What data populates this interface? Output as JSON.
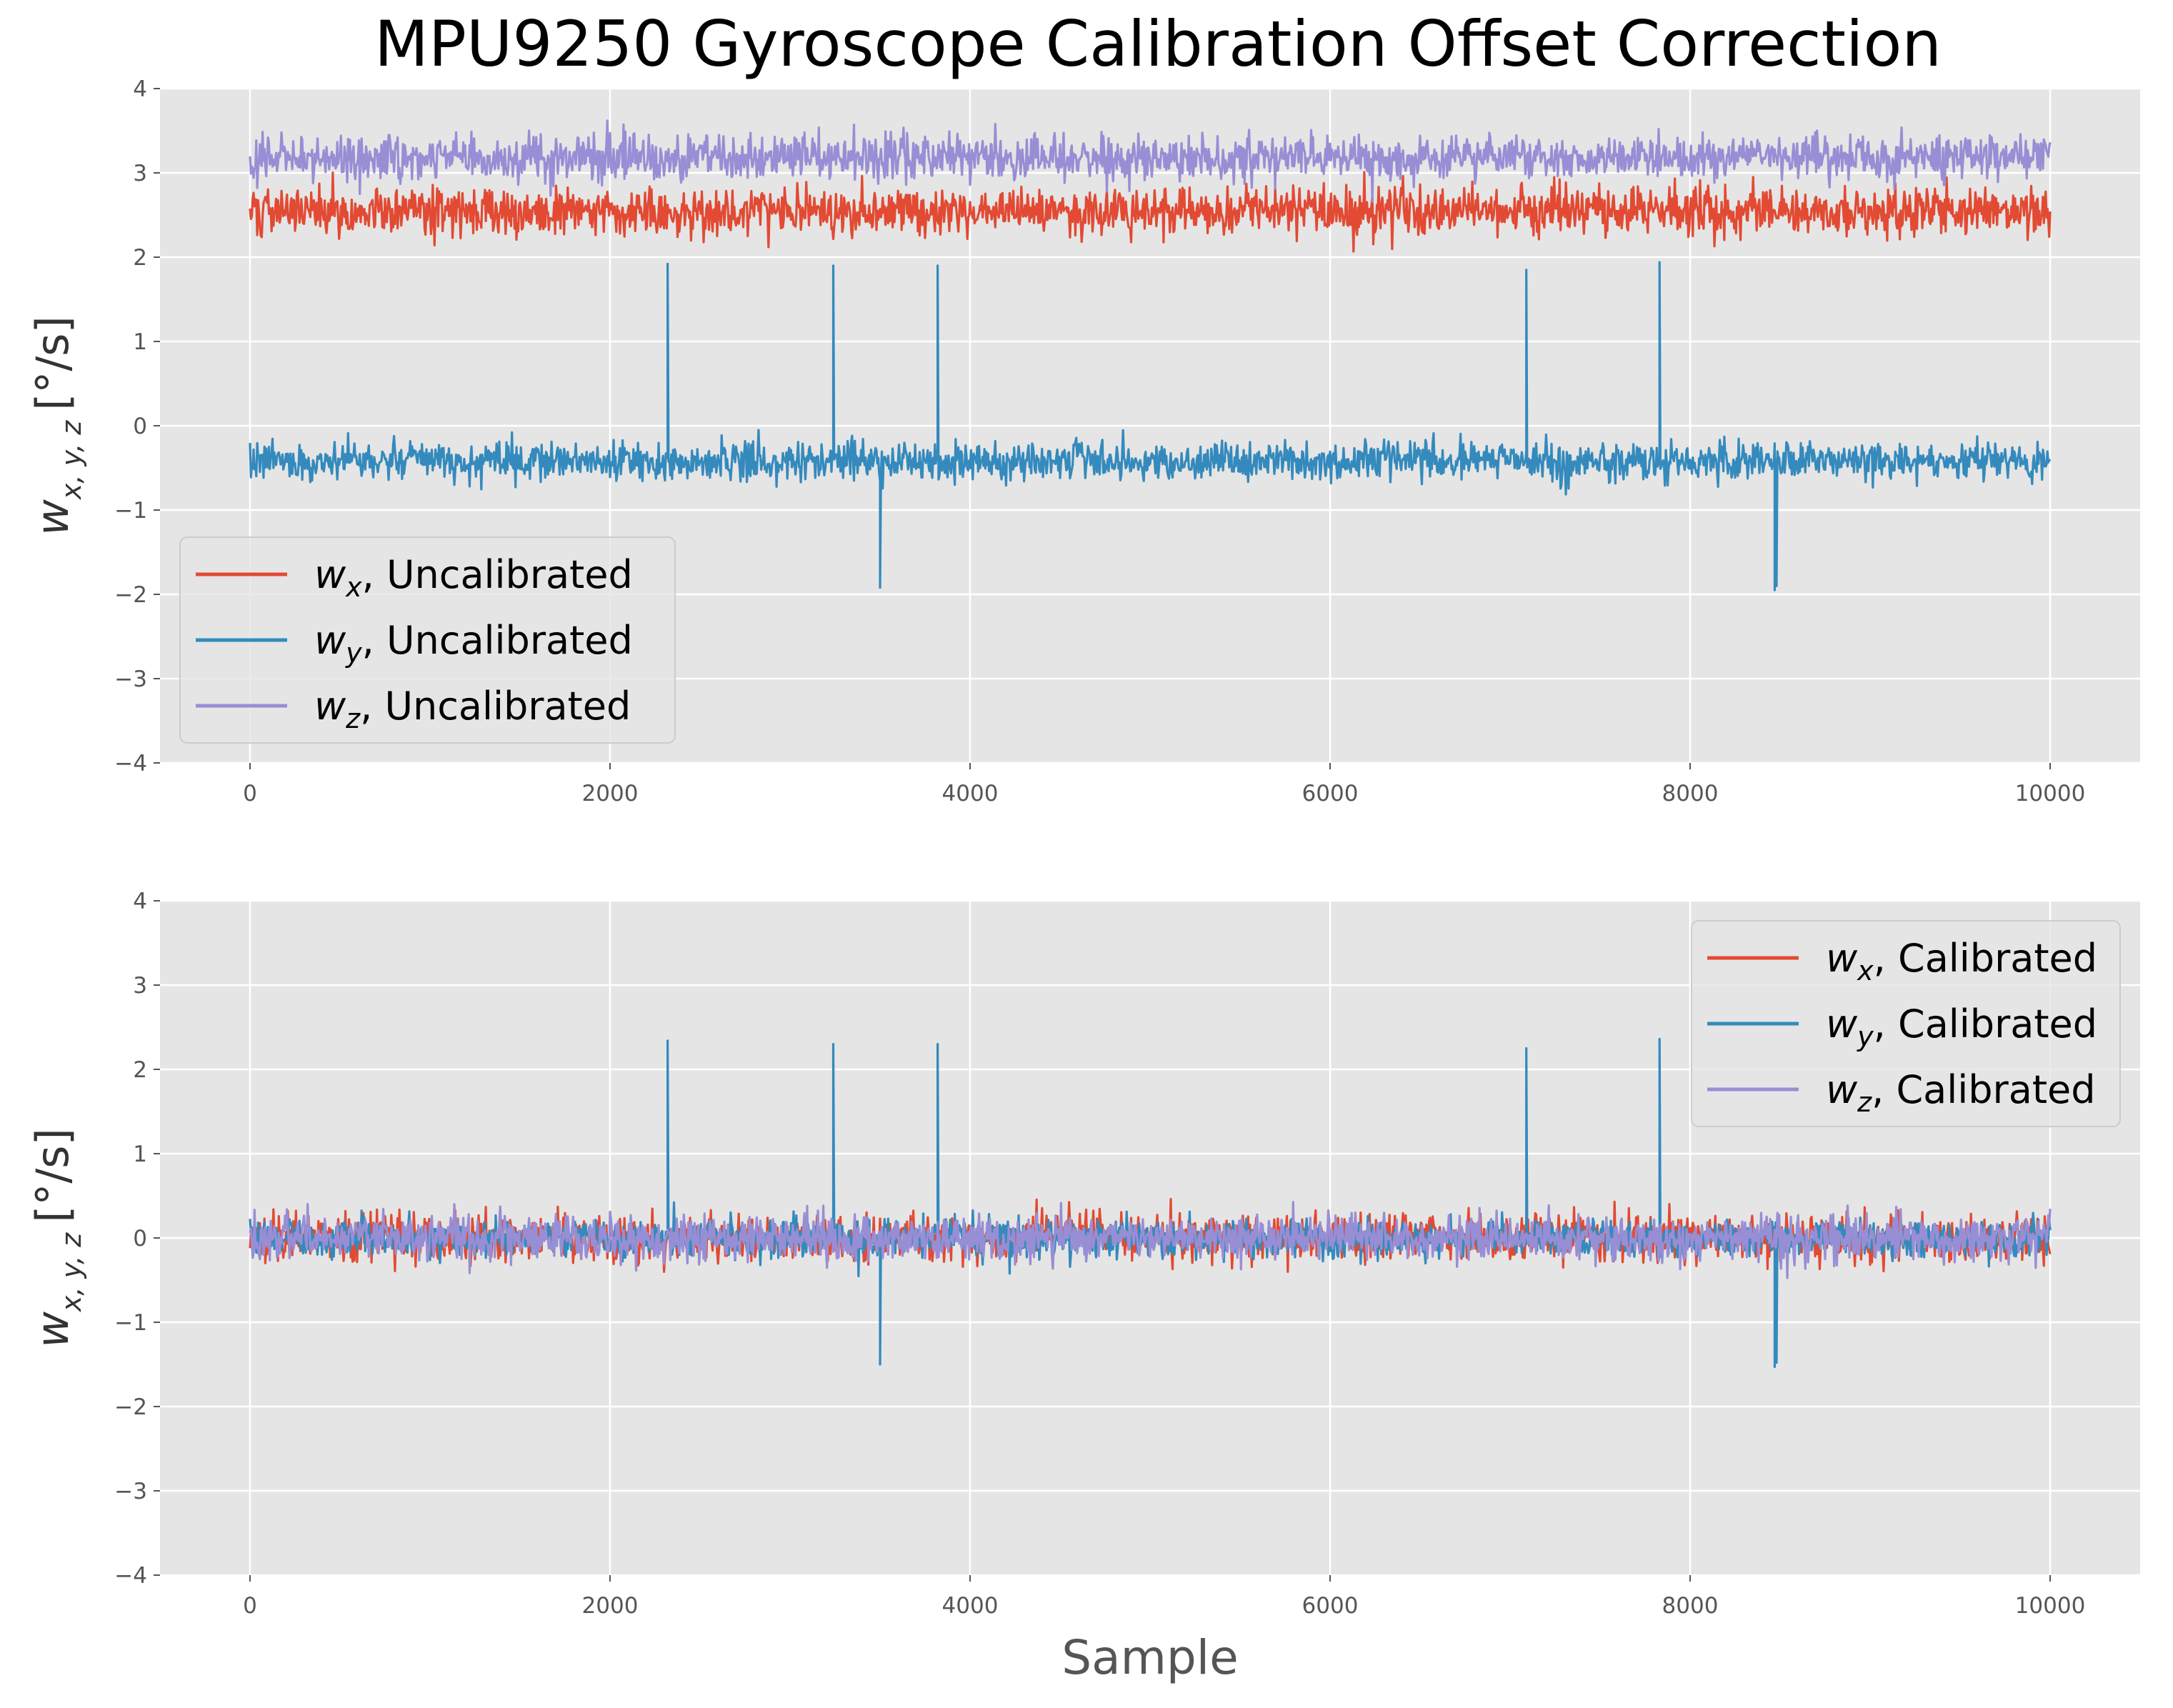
{
  "title": "MPU9250 Gyroscope Calibration Offset Correction",
  "colors": {
    "background": "#ffffff",
    "axes_bg": "#e5e5e5",
    "grid": "#ffffff",
    "wx": "#e24a33",
    "wy": "#348abd",
    "wz": "#988ed5"
  },
  "chart_data": [
    {
      "type": "line",
      "panel": "top",
      "ylabel_main": "w",
      "ylabel_sub": "x, y, z",
      "ylabel_unit": "[°/s]",
      "xlabel": "",
      "xlim": [
        -500,
        10500
      ],
      "ylim": [
        -4,
        4
      ],
      "xticks": [
        0,
        2000,
        4000,
        6000,
        8000,
        10000
      ],
      "yticks": [
        4,
        3,
        2,
        1,
        0,
        -1,
        -2,
        -3,
        -4
      ],
      "ytick_labels": [
        "4",
        "3",
        "2",
        "1",
        "0",
        "−1",
        "−2",
        "−3",
        "−4"
      ],
      "grid": true,
      "legend_position": "lower-left",
      "n_samples": 10000,
      "series": [
        {
          "name": "Uncalibrated",
          "symbol": "w",
          "sub": "x",
          "color_key": "wx",
          "mean": 2.55,
          "noise_sd": 0.14,
          "spikes": []
        },
        {
          "name": "Uncalibrated",
          "symbol": "w",
          "sub": "y",
          "color_key": "wy",
          "mean": -0.42,
          "noise_sd": 0.11,
          "spikes": [
            {
              "x": 2320,
              "y": 1.92
            },
            {
              "x": 3240,
              "y": 1.9
            },
            {
              "x": 3500,
              "y": -1.92
            },
            {
              "x": 3820,
              "y": 1.9
            },
            {
              "x": 7090,
              "y": 1.85
            },
            {
              "x": 7830,
              "y": 1.94
            },
            {
              "x": 8470,
              "y": -1.95
            },
            {
              "x": 8480,
              "y": -1.9
            }
          ]
        },
        {
          "name": "Uncalibrated",
          "symbol": "w",
          "sub": "z",
          "color_key": "wz",
          "mean": 3.18,
          "noise_sd": 0.13,
          "spikes": []
        }
      ]
    },
    {
      "type": "line",
      "panel": "bottom",
      "ylabel_main": "w",
      "ylabel_sub": "x, y, z",
      "ylabel_unit": "[°/s]",
      "xlabel": "Sample",
      "xlim": [
        -500,
        10500
      ],
      "ylim": [
        -4,
        4
      ],
      "xticks": [
        0,
        2000,
        4000,
        6000,
        8000,
        10000
      ],
      "yticks": [
        4,
        3,
        2,
        1,
        0,
        -1,
        -2,
        -3,
        -4
      ],
      "ytick_labels": [
        "4",
        "3",
        "2",
        "1",
        "0",
        "−1",
        "−2",
        "−3",
        "−4"
      ],
      "grid": true,
      "legend_position": "upper-right",
      "n_samples": 10000,
      "series": [
        {
          "name": "Calibrated",
          "symbol": "w",
          "sub": "x",
          "color_key": "wx",
          "mean": 0.0,
          "noise_sd": 0.14,
          "spikes": []
        },
        {
          "name": "Calibrated",
          "symbol": "w",
          "sub": "y",
          "color_key": "wy",
          "mean": 0.0,
          "noise_sd": 0.11,
          "spikes": [
            {
              "x": 2320,
              "y": 2.34
            },
            {
              "x": 3240,
              "y": 2.3
            },
            {
              "x": 3500,
              "y": -1.5
            },
            {
              "x": 3820,
              "y": 2.3
            },
            {
              "x": 7090,
              "y": 2.25
            },
            {
              "x": 7830,
              "y": 2.36
            },
            {
              "x": 8470,
              "y": -1.53
            },
            {
              "x": 8480,
              "y": -1.48
            }
          ]
        },
        {
          "name": "Calibrated",
          "symbol": "w",
          "sub": "z",
          "color_key": "wz",
          "mean": 0.0,
          "noise_sd": 0.13,
          "spikes": []
        }
      ]
    }
  ]
}
